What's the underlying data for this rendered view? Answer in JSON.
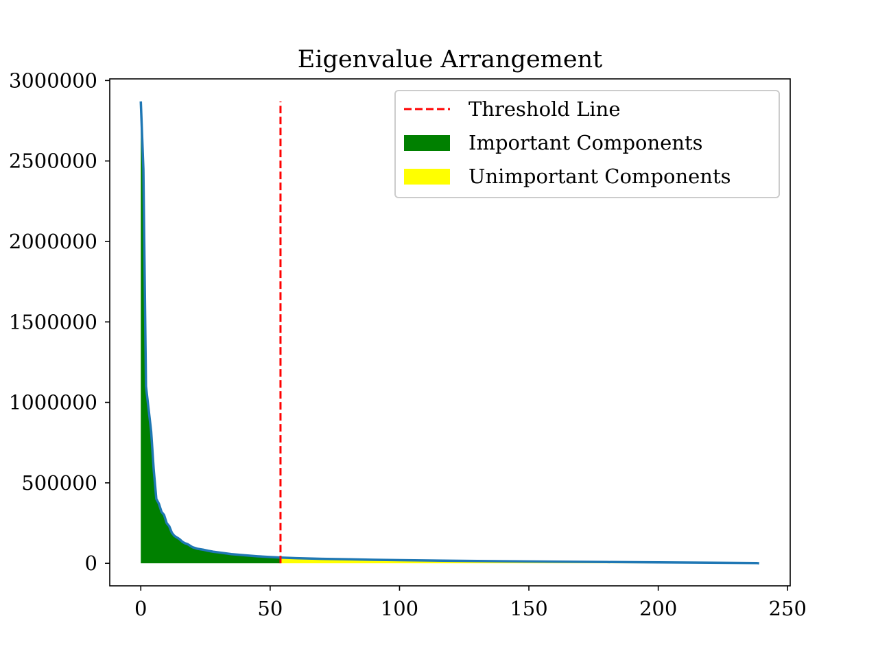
{
  "chart_data": {
    "type": "area",
    "title": "Eigenvalue Arrangement",
    "xlabel": "",
    "ylabel": "",
    "xlim": [
      -12,
      251
    ],
    "ylim": [
      -140000,
      3010000
    ],
    "x_ticks": [
      0,
      50,
      100,
      150,
      200,
      250
    ],
    "x_tick_labels": [
      "0",
      "50",
      "100",
      "150",
      "200",
      "250"
    ],
    "y_ticks": [
      0,
      500000,
      1000000,
      1500000,
      2000000,
      2500000,
      3000000
    ],
    "y_tick_labels": [
      "0",
      "500000",
      "1000000",
      "1500000",
      "2000000",
      "2500000",
      "3000000"
    ],
    "grid": false,
    "legend_position": "upper-right",
    "threshold": {
      "x": 54,
      "y_range": [
        0,
        2870000
      ],
      "label": "Threshold Line",
      "color": "#ff0000",
      "style": "dashed"
    },
    "series": [
      {
        "kind": "line",
        "color": "#1f77b4",
        "x": [
          0,
          1,
          2,
          3,
          4,
          5,
          6,
          7,
          8,
          9,
          10,
          11,
          12,
          13,
          14,
          15,
          16,
          17,
          18,
          19,
          20,
          22,
          24,
          26,
          28,
          30,
          35,
          40,
          45,
          50,
          54,
          60,
          70,
          80,
          90,
          100,
          120,
          140,
          160,
          180,
          200,
          220,
          238,
          239
        ],
        "y": [
          2870000,
          2450000,
          1100000,
          960000,
          820000,
          580000,
          400000,
          370000,
          320000,
          300000,
          250000,
          230000,
          190000,
          170000,
          160000,
          150000,
          135000,
          125000,
          120000,
          110000,
          100000,
          90000,
          85000,
          78000,
          72000,
          68000,
          57000,
          50000,
          44000,
          39000,
          36000,
          32000,
          28000,
          25000,
          22000,
          20000,
          16000,
          13000,
          10000,
          8000,
          6000,
          4000,
          2000,
          0
        ]
      },
      {
        "kind": "fill",
        "name": "Important Components",
        "color": "#008000",
        "x_range": [
          0,
          54
        ]
      },
      {
        "kind": "fill",
        "name": "Unimportant Components",
        "color": "#ffff00",
        "x_range": [
          54,
          239
        ]
      }
    ],
    "legend": [
      {
        "label": "Threshold Line",
        "kind": "line",
        "color": "#ff0000"
      },
      {
        "label": "Important Components",
        "kind": "patch",
        "color": "#008000"
      },
      {
        "label": "Unimportant Components",
        "kind": "patch",
        "color": "#ffff00"
      }
    ]
  }
}
